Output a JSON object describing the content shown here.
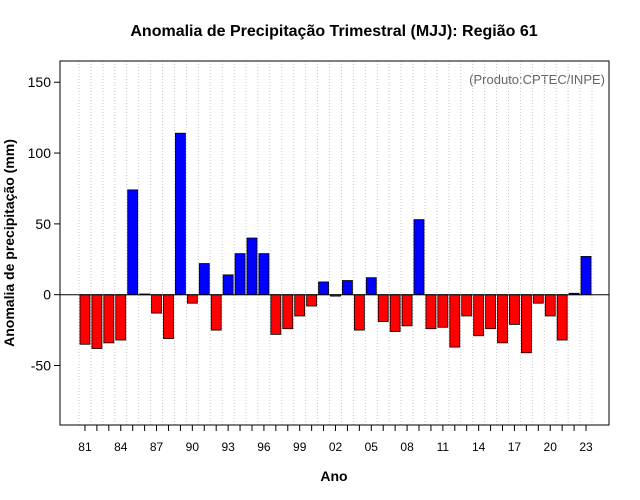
{
  "chart_data": {
    "type": "bar",
    "title": "Anomalia de Precipitação Trimestral (MJJ): Região 61",
    "xlabel": "Ano",
    "ylabel": "Anomalia de precipitação (mm)",
    "credit": "(Produto:CPTEC/INPE)",
    "ylim": [
      -92,
      165
    ],
    "yticks": [
      -50,
      0,
      50,
      100,
      150
    ],
    "xtick_labels": [
      "81",
      "84",
      "87",
      "90",
      "93",
      "96",
      "99",
      "02",
      "05",
      "08",
      "11",
      "14",
      "17",
      "20",
      "23"
    ],
    "first_year": 1981,
    "last_year": 2023,
    "grid": "vertical dotted",
    "colors": {
      "positive": "#0000ff",
      "negative": "#ff0000",
      "outline": "#000000"
    },
    "categories": [
      "1981",
      "1982",
      "1983",
      "1984",
      "1985",
      "1986",
      "1987",
      "1988",
      "1989",
      "1990",
      "1991",
      "1992",
      "1993",
      "1994",
      "1995",
      "1996",
      "1997",
      "1998",
      "1999",
      "2000",
      "2001",
      "2002",
      "2003",
      "2004",
      "2005",
      "2006",
      "2007",
      "2008",
      "2009",
      "2010",
      "2011",
      "2012",
      "2013",
      "2014",
      "2015",
      "2016",
      "2017",
      "2018",
      "2019",
      "2020",
      "2021",
      "2022",
      "2023"
    ],
    "values": [
      -35,
      -38,
      -34,
      -32,
      74,
      0.5,
      -13,
      -31,
      114,
      -6,
      22,
      -25,
      14,
      29,
      40,
      29,
      -28,
      -24,
      -15,
      -8,
      9,
      -1,
      10,
      -25,
      12,
      -19,
      -26,
      -22,
      53,
      -24,
      -23,
      -37,
      -15,
      -29,
      -24,
      -34,
      -21,
      -41,
      -6,
      -15,
      -32,
      1,
      27
    ]
  }
}
